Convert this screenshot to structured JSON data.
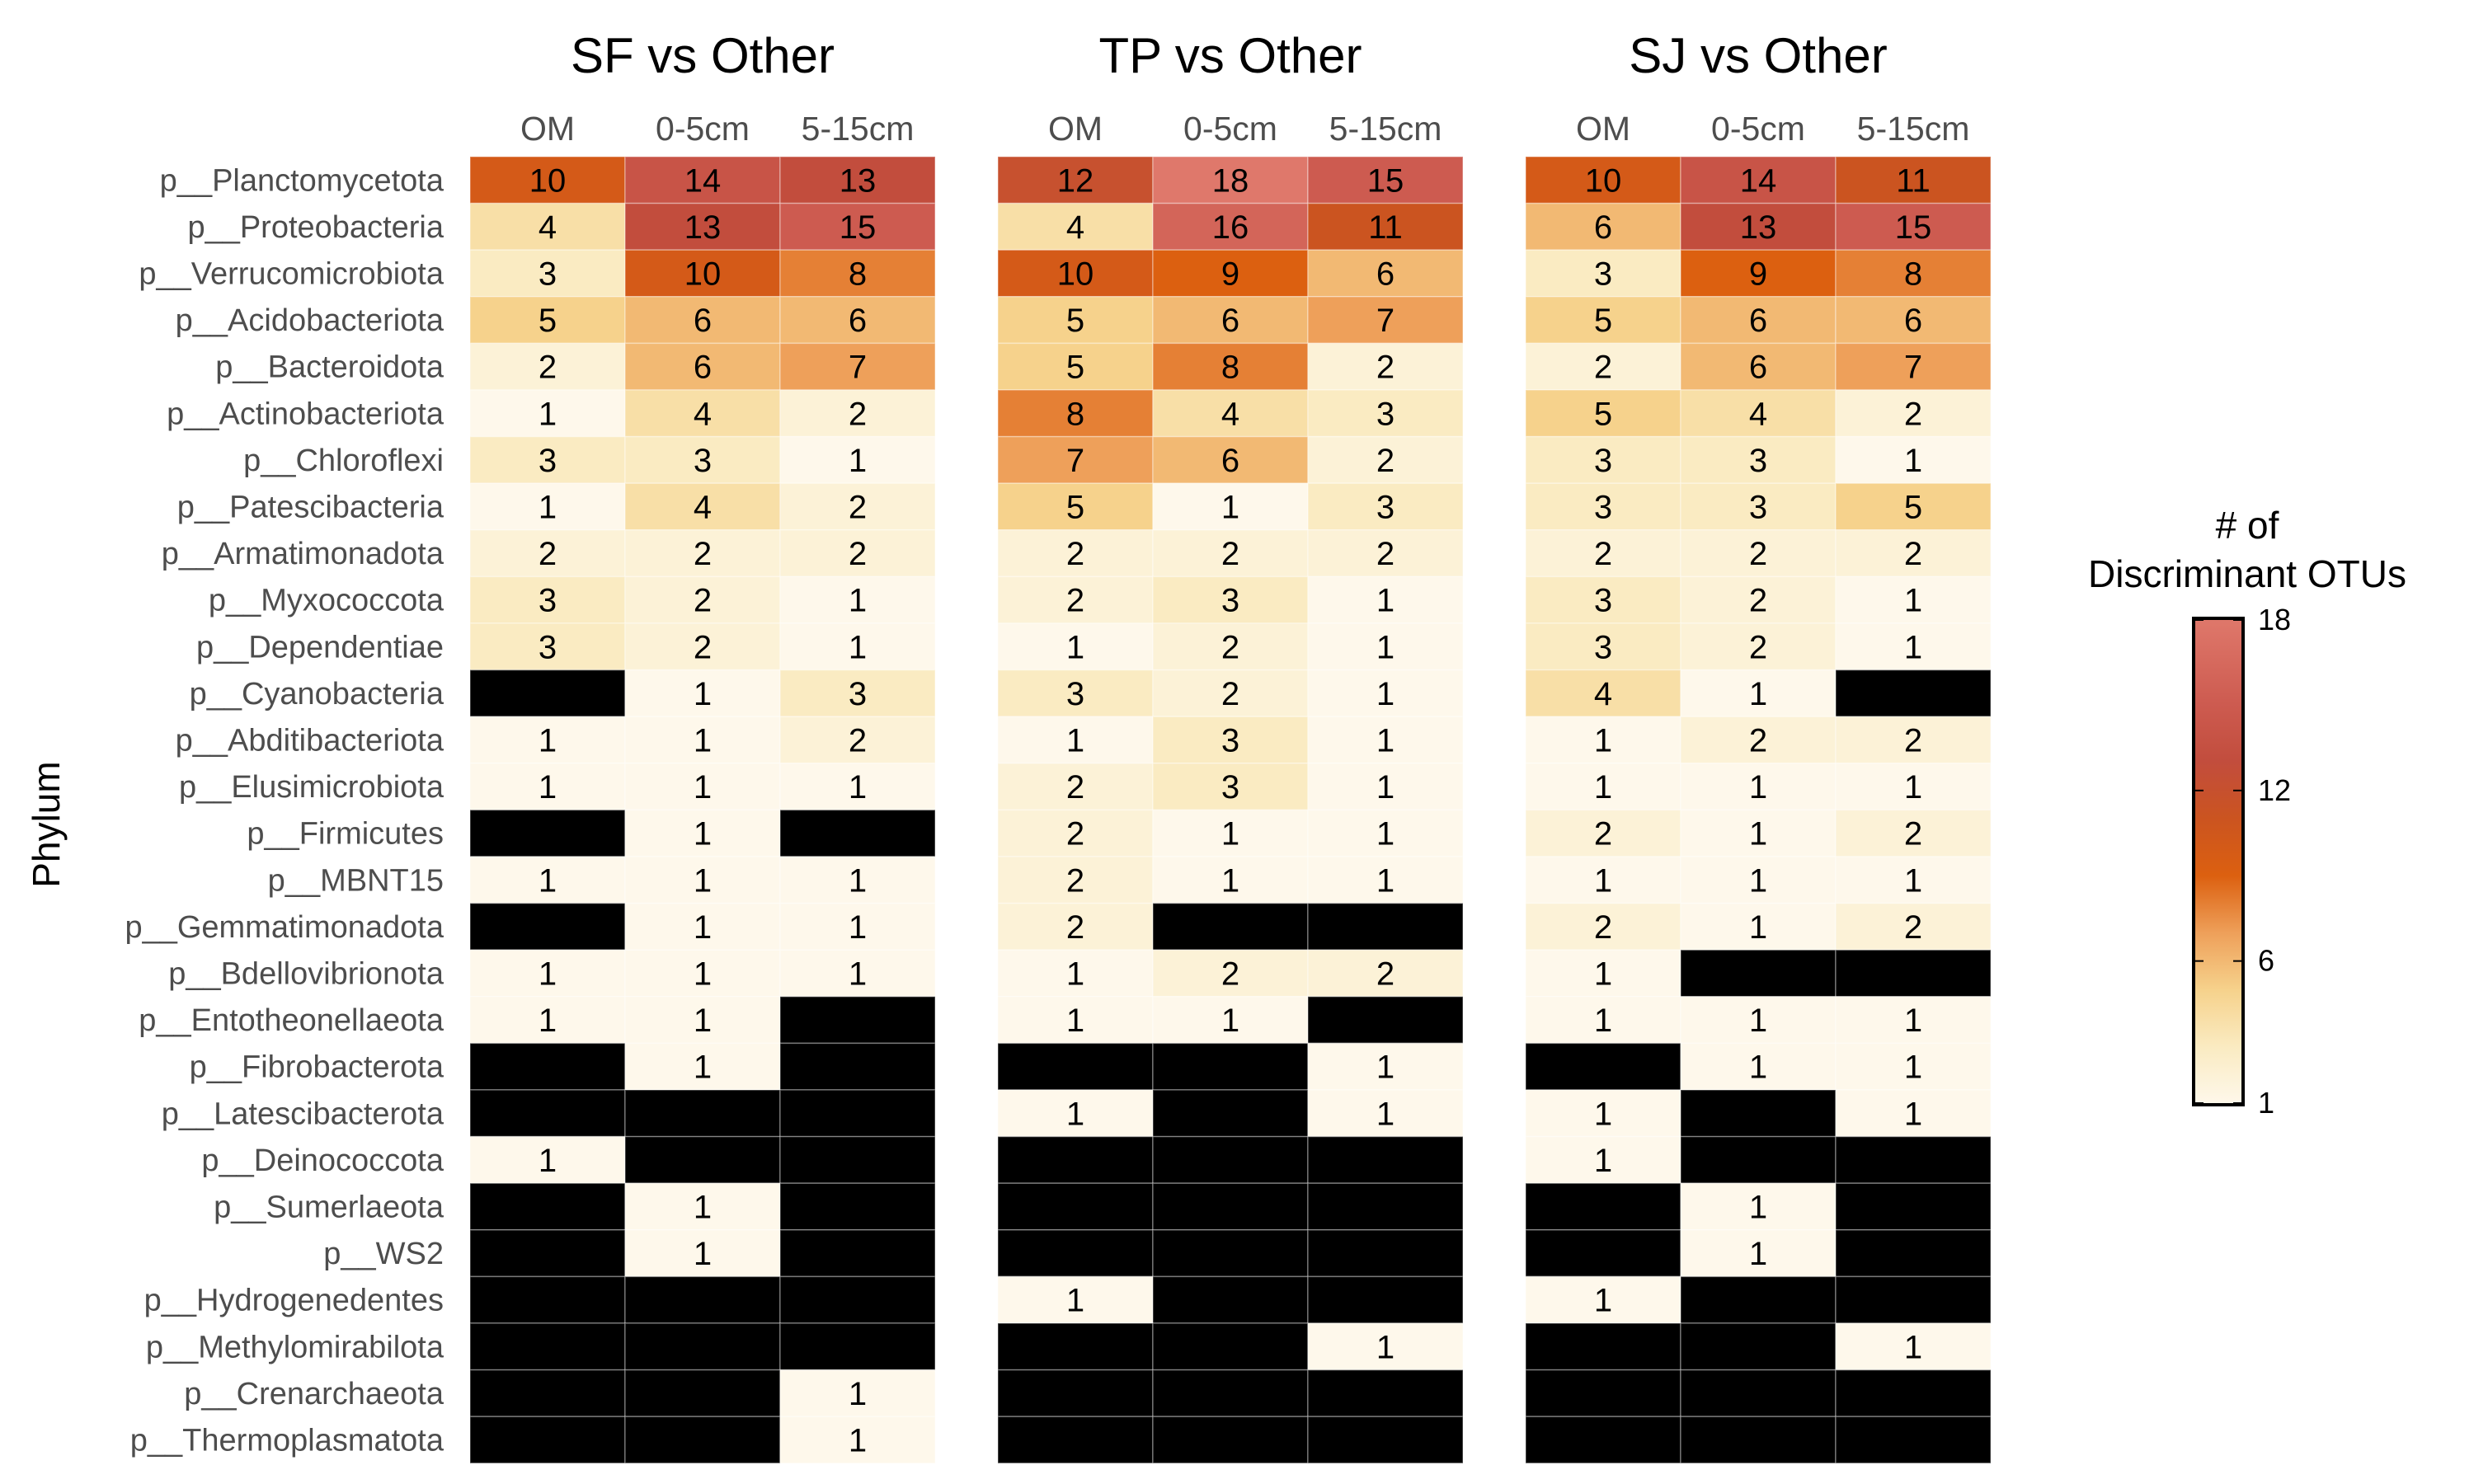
{
  "chart_data": {
    "type": "heatmap",
    "ylabel": "Phylum",
    "columns": [
      "OM",
      "0-5cm",
      "5-15cm"
    ],
    "rows": [
      "p__Planctomycetota",
      "p__Proteobacteria",
      "p__Verrucomicrobiota",
      "p__Acidobacteriota",
      "p__Bacteroidota",
      "p__Actinobacteriota",
      "p__Chloroflexi",
      "p__Patescibacteria",
      "p__Armatimonadota",
      "p__Myxococcota",
      "p__Dependentiae",
      "p__Cyanobacteria",
      "p__Abditibacteriota",
      "p__Elusimicrobiota",
      "p__Firmicutes",
      "p__MBNT15",
      "p__Gemmatimonadota",
      "p__Bdellovibrionota",
      "p__Entotheonellaeota",
      "p__Fibrobacterota",
      "p__Latescibacterota",
      "p__Deinococcota",
      "p__Sumerlaeota",
      "p__WS2",
      "p__Hydrogenedentes",
      "p__Methylomirabilota",
      "p__Crenarchaeota",
      "p__Thermoplasmatota"
    ],
    "panels": [
      {
        "title": "SF vs Other",
        "values": [
          [
            10,
            14,
            13
          ],
          [
            4,
            13,
            15
          ],
          [
            3,
            10,
            8
          ],
          [
            5,
            6,
            6
          ],
          [
            2,
            6,
            7
          ],
          [
            1,
            4,
            2
          ],
          [
            3,
            3,
            1
          ],
          [
            1,
            4,
            2
          ],
          [
            2,
            2,
            2
          ],
          [
            3,
            2,
            1
          ],
          [
            3,
            2,
            1
          ],
          [
            null,
            1,
            3
          ],
          [
            1,
            1,
            2
          ],
          [
            1,
            1,
            1
          ],
          [
            null,
            1,
            null
          ],
          [
            1,
            1,
            1
          ],
          [
            null,
            1,
            1
          ],
          [
            1,
            1,
            1
          ],
          [
            1,
            1,
            null
          ],
          [
            null,
            1,
            null
          ],
          [
            null,
            null,
            null
          ],
          [
            1,
            null,
            null
          ],
          [
            null,
            1,
            null
          ],
          [
            null,
            1,
            null
          ],
          [
            null,
            null,
            null
          ],
          [
            null,
            null,
            null
          ],
          [
            null,
            null,
            1
          ],
          [
            null,
            null,
            1
          ]
        ]
      },
      {
        "title": "TP vs Other",
        "values": [
          [
            12,
            18,
            15
          ],
          [
            4,
            16,
            11
          ],
          [
            10,
            9,
            6
          ],
          [
            5,
            6,
            7
          ],
          [
            5,
            8,
            2
          ],
          [
            8,
            4,
            3
          ],
          [
            7,
            6,
            2
          ],
          [
            5,
            1,
            3
          ],
          [
            2,
            2,
            2
          ],
          [
            2,
            3,
            1
          ],
          [
            1,
            2,
            1
          ],
          [
            3,
            2,
            1
          ],
          [
            1,
            3,
            1
          ],
          [
            2,
            3,
            1
          ],
          [
            2,
            1,
            1
          ],
          [
            2,
            1,
            1
          ],
          [
            2,
            null,
            null
          ],
          [
            1,
            2,
            2
          ],
          [
            1,
            1,
            null
          ],
          [
            null,
            null,
            1
          ],
          [
            1,
            null,
            1
          ],
          [
            null,
            null,
            null
          ],
          [
            null,
            null,
            null
          ],
          [
            null,
            null,
            null
          ],
          [
            1,
            null,
            null
          ],
          [
            null,
            null,
            1
          ],
          [
            null,
            null,
            null
          ],
          [
            null,
            null,
            null
          ]
        ]
      },
      {
        "title": "SJ vs Other",
        "values": [
          [
            10,
            14,
            11
          ],
          [
            6,
            13,
            15
          ],
          [
            3,
            9,
            8
          ],
          [
            5,
            6,
            6
          ],
          [
            2,
            6,
            7
          ],
          [
            5,
            4,
            2
          ],
          [
            3,
            3,
            1
          ],
          [
            3,
            3,
            5
          ],
          [
            2,
            2,
            2
          ],
          [
            3,
            2,
            1
          ],
          [
            3,
            2,
            1
          ],
          [
            4,
            1,
            null
          ],
          [
            1,
            2,
            2
          ],
          [
            1,
            1,
            1
          ],
          [
            2,
            1,
            2
          ],
          [
            1,
            1,
            1
          ],
          [
            2,
            1,
            2
          ],
          [
            1,
            null,
            null
          ],
          [
            1,
            1,
            1
          ],
          [
            null,
            1,
            1
          ],
          [
            1,
            null,
            1
          ],
          [
            1,
            null,
            null
          ],
          [
            null,
            1,
            null
          ],
          [
            null,
            1,
            null
          ],
          [
            1,
            null,
            null
          ],
          [
            null,
            null,
            1
          ],
          [
            null,
            null,
            null
          ],
          [
            null,
            null,
            null
          ]
        ]
      }
    ],
    "missing_color": "#000000",
    "legend": {
      "title": [
        "# of",
        "Discriminant OTUs"
      ],
      "ticks": [
        1,
        6,
        12,
        18
      ],
      "range": [
        1,
        18
      ],
      "position": "right"
    },
    "colorscale": [
      {
        "value": 1,
        "color": "#FEF8EB"
      },
      {
        "value": 3,
        "color": "#FAEBC2"
      },
      {
        "value": 5,
        "color": "#F6D28C"
      },
      {
        "value": 7,
        "color": "#EEA05A"
      },
      {
        "value": 9,
        "color": "#DC6010"
      },
      {
        "value": 11,
        "color": "#CB5420"
      },
      {
        "value": 13,
        "color": "#C24D3D"
      },
      {
        "value": 15,
        "color": "#CD5B50"
      },
      {
        "value": 18,
        "color": "#DF786B"
      }
    ]
  }
}
